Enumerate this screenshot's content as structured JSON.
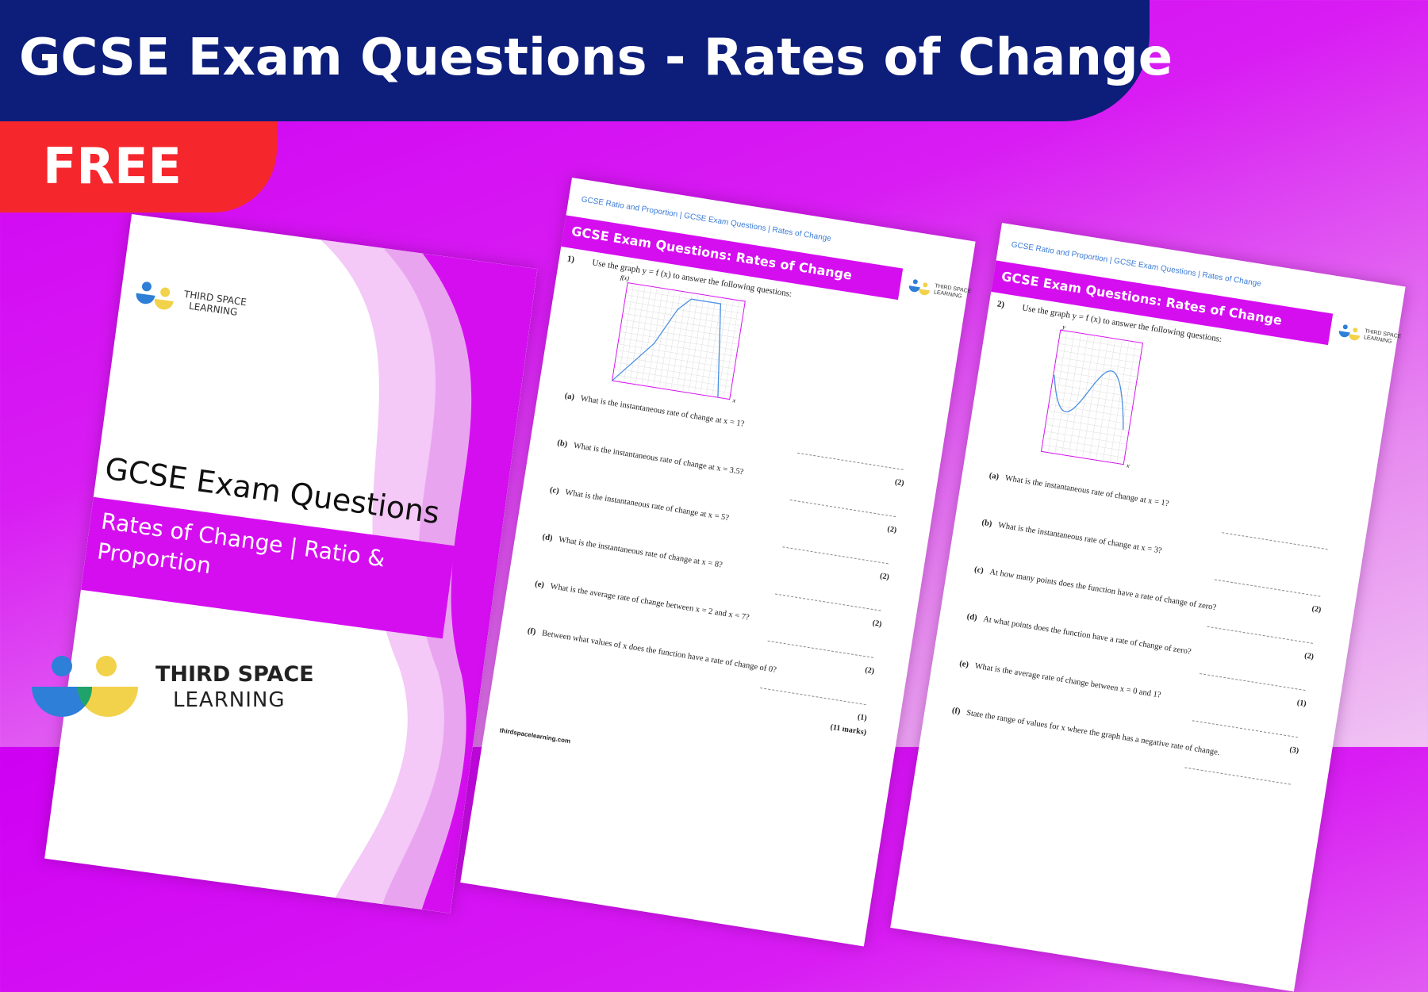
{
  "banner": {
    "title": "GCSE Exam Questions - Rates of Change",
    "badge": "FREE"
  },
  "colors": {
    "navy": "#0c1d7a",
    "red": "#f6262d",
    "magenta": "#d50ef0",
    "logo_blue": "#2e7fd8",
    "logo_yellow": "#f2d24a",
    "logo_green": "#1fa36a"
  },
  "cover": {
    "title": "GCSE Exam Questions",
    "subtitle": "Rates of Change | Ratio & Proportion",
    "logo_line1": "THIRD SPACE",
    "logo_line2": "LEARNING"
  },
  "brand": {
    "line1": "THIRD SPACE",
    "line2": "LEARNING"
  },
  "worksheet1": {
    "breadcrumb": "GCSE Ratio and Proportion | GCSE Exam Questions | Rates of Change",
    "heading": "GCSE Exam Questions: Rates of Change",
    "number": "1)",
    "intro": "Use the graph y = f (x) to answer the following questions:",
    "y_label": "f(x)",
    "x_label": "x",
    "graph_points": [
      [
        0,
        0
      ],
      [
        3,
        3.5
      ],
      [
        4.5,
        6.5
      ],
      [
        5.5,
        7.5
      ],
      [
        8,
        7.5
      ],
      [
        9,
        0
      ]
    ],
    "questions": [
      {
        "label": "(a)",
        "text": "What is the instantaneous rate of change at x = 1?",
        "marks": "(2)"
      },
      {
        "label": "(b)",
        "text": "What is the instantaneous rate of change at x = 3.5?",
        "marks": "(2)"
      },
      {
        "label": "(c)",
        "text": "What is the instantaneous rate of change at x = 5?",
        "marks": "(2)"
      },
      {
        "label": "(d)",
        "text": "What is the instantaneous rate of change at x = 8?",
        "marks": "(2)"
      },
      {
        "label": "(e)",
        "text": "What is the average rate of change between x = 2 and x = 7?",
        "marks": "(2)"
      },
      {
        "label": "(f)",
        "text": "Between what values of x does the function have a rate of change of 0?",
        "marks": "(1)"
      }
    ],
    "total": "(11 marks)",
    "footer": "thirdspacelearning.com"
  },
  "worksheet2": {
    "breadcrumb": "GCSE Ratio and Proportion | GCSE Exam Questions | Rates of Change",
    "heading": "GCSE Exam Questions: Rates of Change",
    "number": "2)",
    "intro": "Use the graph y = f (x) to answer the following questions:",
    "y_label": "y",
    "x_label": "x",
    "questions": [
      {
        "label": "(a)",
        "text": "What is the instantaneous rate of change at x = 1?",
        "marks": ""
      },
      {
        "label": "(b)",
        "text": "What is the instantaneous rate of change at x = 3?",
        "marks": "(2)"
      },
      {
        "label": "(c)",
        "text": "At how many points does the function have a rate of change of zero?",
        "marks": "(2)"
      },
      {
        "label": "(d)",
        "text": "At what points does the function have a rate of change of zero?",
        "marks": "(1)"
      },
      {
        "label": "(e)",
        "text": "What is the average rate of change between x = 0 and 1?",
        "marks": "(3)"
      },
      {
        "label": "(f)",
        "text": "State the range of values for x where the graph has a negative rate of change.",
        "marks": ""
      }
    ]
  }
}
